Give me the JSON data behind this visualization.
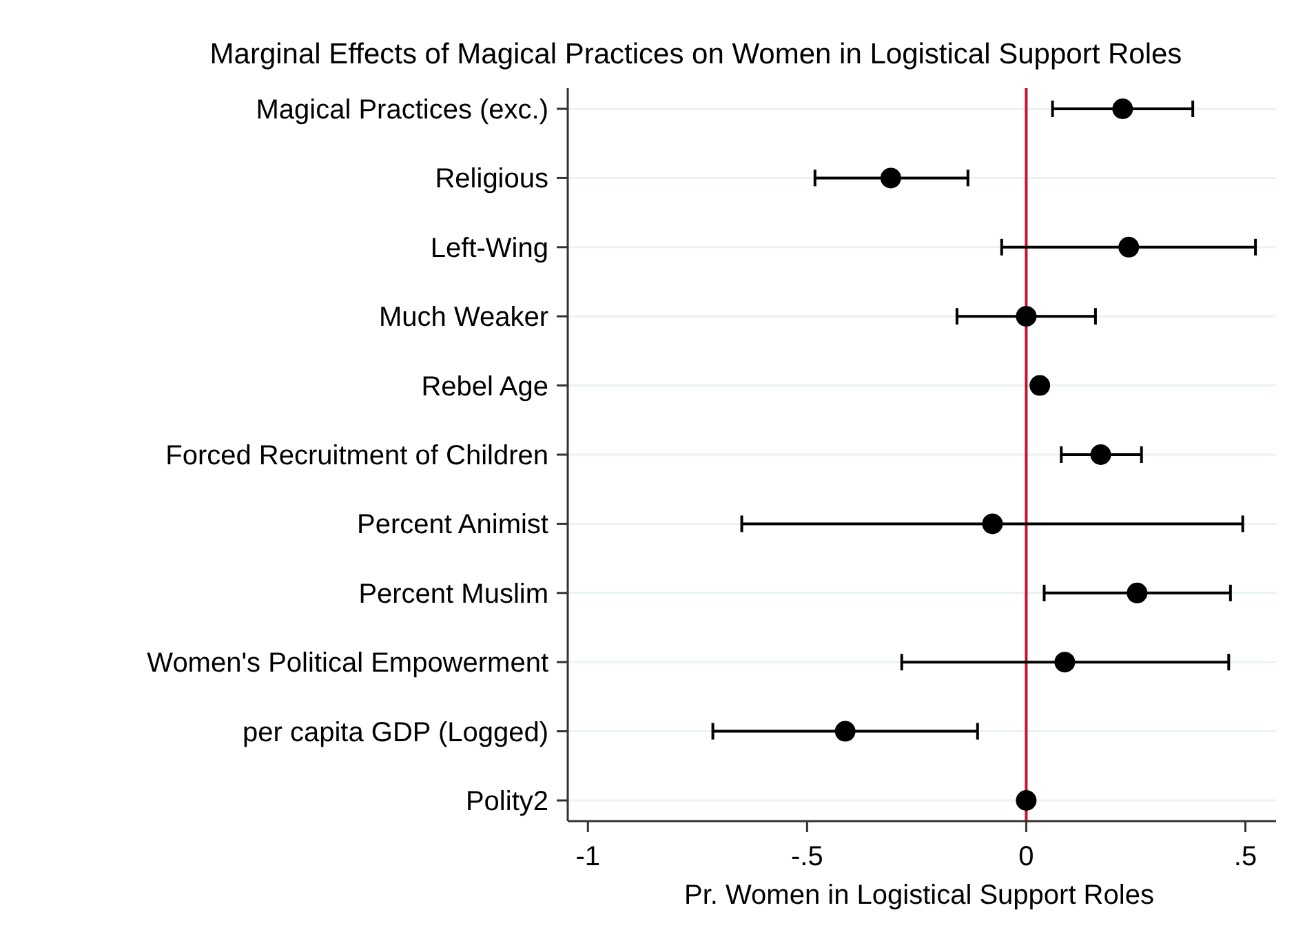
{
  "chart_data": {
    "type": "scatter",
    "orientation": "horizontal",
    "title": "Marginal Effects of Magical Practices on Women in Logistical Support Roles",
    "xlabel": "Pr. Women in Logistical Support Roles",
    "categories": [
      "Magical Practices (exc.)",
      "Religious",
      "Left-Wing",
      "Much Weaker",
      "Rebel Age",
      "Forced Recruitment of Children",
      "Percent Animist",
      "Percent Muslim",
      "Women's Political Empowerment",
      "per capita GDP (Logged)",
      "Polity2"
    ],
    "values": [
      0.22,
      -0.309,
      0.234,
      0,
      0.031,
      0.17,
      -0.077,
      0.253,
      0.088,
      -0.413,
      0
    ],
    "errors": [
      [
        0.06,
        0.38
      ],
      [
        -0.482,
        -0.133
      ],
      [
        -0.056,
        0.523
      ],
      [
        -0.158,
        0.158
      ],
      null,
      [
        0.08,
        0.263
      ],
      [
        -0.649,
        0.494
      ],
      [
        0.041,
        0.466
      ],
      [
        -0.284,
        0.462
      ],
      [
        -0.715,
        -0.111
      ],
      null
    ],
    "color": "#000000",
    "marker": "circle",
    "grid": "y",
    "xlim": [
      -1.046,
      0.57
    ],
    "xticks": [
      {
        "value": -1,
        "label": "-1"
      },
      {
        "value": -0.5,
        "label": "-.5"
      },
      {
        "value": 0,
        "label": "0"
      },
      {
        "value": 0.5,
        "label": ".5"
      }
    ],
    "ref_lines": [
      {
        "axis": "x",
        "value": 0,
        "color": "#c8102e"
      }
    ]
  }
}
